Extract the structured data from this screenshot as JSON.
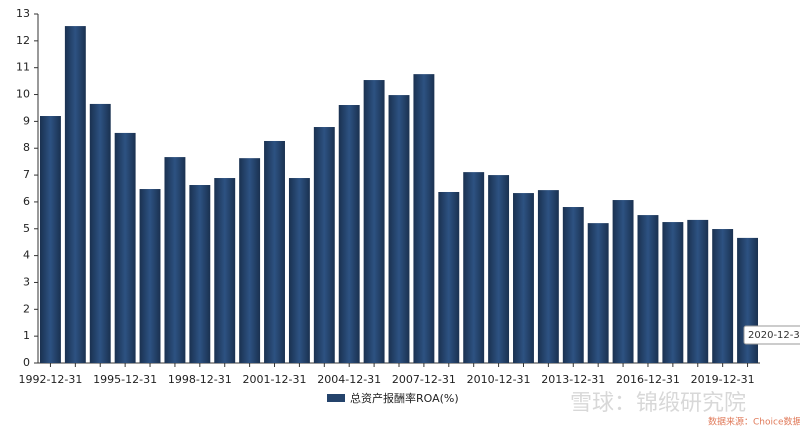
{
  "chart_data": {
    "type": "bar",
    "categories": [
      "1992-12-31",
      null,
      null,
      "1995-12-31",
      null,
      null,
      "1998-12-31",
      null,
      null,
      "2001-12-31",
      null,
      null,
      "2004-12-31",
      null,
      null,
      "2007-12-31",
      null,
      null,
      "2010-12-31",
      null,
      null,
      "2013-12-31",
      null,
      null,
      "2016-12-31",
      null,
      null,
      "2019-12-31",
      null
    ],
    "series": [
      {
        "name": "总资产报酬率ROA(%)",
        "color": "#24436b",
        "values": [
          9.2,
          12.55,
          9.65,
          8.57,
          6.48,
          7.67,
          6.63,
          6.89,
          7.63,
          8.27,
          6.89,
          8.79,
          9.61,
          10.54,
          9.98,
          10.76,
          6.37,
          7.11,
          7.0,
          6.33,
          6.44,
          5.81,
          5.21,
          6.07,
          5.51,
          5.25,
          5.33,
          4.99,
          4.66
        ]
      }
    ],
    "ylim": [
      0,
      13
    ],
    "yticks": [
      0,
      1,
      2,
      3,
      4,
      5,
      6,
      7,
      8,
      9,
      10,
      11,
      12,
      13
    ],
    "grid": false,
    "legend": "bottom",
    "tooltip": "2020-12-3",
    "watermark": "雪球：锦缎研究院",
    "source": "数据来源：Choice数据"
  }
}
